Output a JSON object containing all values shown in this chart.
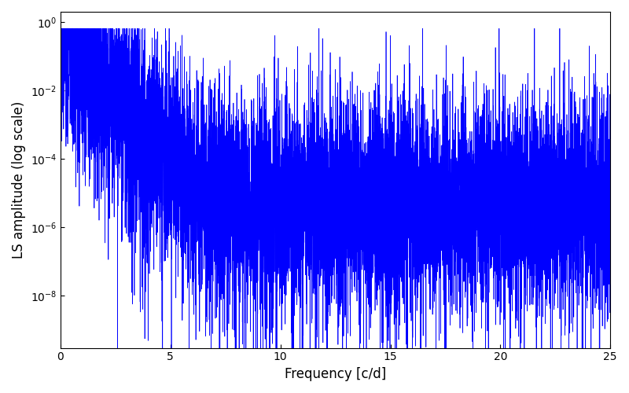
{
  "xlabel": "Frequency [c/d]",
  "ylabel": "LS amplitude (log scale)",
  "xlim": [
    0,
    25
  ],
  "ylim": [
    3e-10,
    2.0
  ],
  "line_color": "#0000ff",
  "line_width": 0.5,
  "background_color": "#ffffff",
  "seed": 77,
  "n_points": 10000,
  "freq_max": 25.0,
  "figsize": [
    8.0,
    5.0
  ],
  "dpi": 100
}
